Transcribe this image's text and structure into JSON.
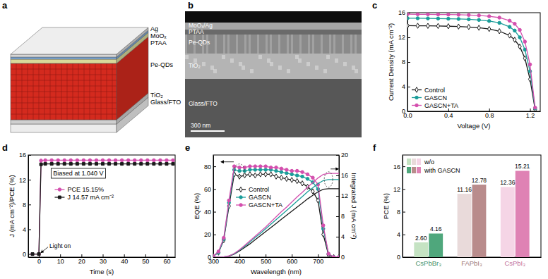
{
  "schematic": {
    "panel_label": "a",
    "layers": [
      "Ag",
      "MoOₓ",
      "PTAA",
      "Pe-QDs",
      "TiO₂",
      "Glass/FTO"
    ]
  },
  "sem_image": {
    "panel_label": "b",
    "layers": [
      "MoOₓ/Ag",
      "PTAA",
      "Pe-QDs",
      "TiO₂",
      "Glass/FTO"
    ],
    "scale_bar": "300 nm"
  },
  "chart_data": [
    {
      "type": "line",
      "panel_label": "c",
      "xlabel": "Voltage (V)",
      "ylabel": "Current Density (mA cm⁻²)",
      "x": [
        0,
        0.1,
        0.2,
        0.3,
        0.4,
        0.5,
        0.6,
        0.7,
        0.8,
        0.9,
        1.0,
        1.05,
        1.1,
        1.15,
        1.2,
        1.25
      ],
      "xlim": [
        0,
        1.3
      ],
      "xticks": [
        {
          "value": 0,
          "label": "0.0"
        },
        0.4,
        0.8,
        1.2
      ],
      "ylim": [
        0,
        16
      ],
      "yticks": [
        0,
        4,
        8,
        12,
        16
      ],
      "legend": "lower left",
      "series": [
        {
          "name": "Control",
          "color": "#1a1a1a",
          "marker": "diamond",
          "line_style": "solid",
          "values": [
            13.9,
            13.88,
            13.86,
            13.84,
            13.8,
            13.75,
            13.68,
            13.55,
            13.35,
            13.0,
            12.3,
            11.6,
            10.5,
            8.6,
            5.2,
            0.3
          ]
        },
        {
          "name": "GASCN",
          "color": "#1b9e9a",
          "marker": "circle",
          "line_style": "solid",
          "values": [
            15.1,
            15.09,
            15.07,
            15.05,
            15.02,
            14.98,
            14.92,
            14.82,
            14.65,
            14.35,
            13.7,
            13.1,
            12.0,
            10.0,
            6.5,
            0.5
          ]
        },
        {
          "name": "GASCN+TA",
          "color": "#d44fae",
          "marker": "circle",
          "line_style": "solid",
          "values": [
            15.75,
            15.74,
            15.73,
            15.71,
            15.69,
            15.66,
            15.62,
            15.55,
            15.42,
            15.2,
            14.7,
            14.2,
            13.2,
            11.3,
            7.6,
            0.6
          ]
        }
      ]
    },
    {
      "type": "line",
      "panel_label": "d",
      "xlabel": "Time (s)",
      "ylabel": "J (mA cm⁻²)/PCE (%)",
      "annotations": [
        "Biased at 1.040 V",
        "Light on"
      ],
      "x": [
        -3,
        0,
        1,
        3,
        6,
        9,
        12,
        15,
        18,
        21,
        24,
        27,
        30,
        33,
        36,
        39,
        42,
        45,
        48,
        51,
        54,
        57,
        60,
        63
      ],
      "xlim": [
        -5,
        64
      ],
      "xticks": [
        0,
        10,
        20,
        30,
        40,
        50,
        60
      ],
      "ylim": [
        -0.5,
        16
      ],
      "yticks": [
        0,
        4,
        8,
        12,
        16
      ],
      "legend": "center",
      "series": [
        {
          "name": "PCE 15.15%",
          "color": "#d44fae",
          "marker": "circle",
          "line_style": "solid",
          "values": [
            0,
            0,
            15.1,
            15.15,
            15.15,
            15.15,
            15.15,
            15.15,
            15.15,
            15.15,
            15.15,
            15.15,
            15.15,
            15.15,
            15.15,
            15.15,
            15.15,
            15.15,
            15.15,
            15.15,
            15.15,
            15.15,
            15.15,
            15.15
          ]
        },
        {
          "name": "J 14.57 mA cm⁻²",
          "color": "#1a1a1a",
          "marker": "square",
          "line_style": "solid",
          "values": [
            0,
            0,
            14.5,
            14.57,
            14.57,
            14.57,
            14.57,
            14.57,
            14.57,
            14.57,
            14.57,
            14.57,
            14.57,
            14.57,
            14.57,
            14.57,
            14.57,
            14.57,
            14.57,
            14.57,
            14.57,
            14.57,
            14.57,
            14.57
          ]
        }
      ]
    },
    {
      "type": "line",
      "panel_label": "e",
      "xlabel": "Wavelength (nm)",
      "ylabel": "EQE (%)",
      "y2label": "Integrated J (mA cm⁻²)",
      "x": [
        300,
        320,
        340,
        360,
        380,
        400,
        420,
        440,
        460,
        480,
        500,
        520,
        540,
        560,
        580,
        600,
        620,
        640,
        660,
        680,
        700,
        720,
        740,
        760,
        780
      ],
      "xlim": [
        300,
        780
      ],
      "xticks": [
        300,
        400,
        500,
        600,
        700
      ],
      "ylim": [
        0,
        90
      ],
      "yticks": [
        0,
        20,
        40,
        60,
        80
      ],
      "y2lim": [
        0,
        20
      ],
      "y2ticks": [
        0,
        4,
        8,
        12,
        16,
        20
      ],
      "legend": "center",
      "series": [
        {
          "name": "Control",
          "color": "#1a1a1a",
          "marker": "diamond",
          "line_style": "solid",
          "values": [
            1,
            4,
            15,
            45,
            73,
            71,
            72,
            73,
            72,
            73,
            73,
            73,
            71,
            70,
            69,
            68,
            67,
            65,
            62,
            58,
            50,
            20,
            2,
            0,
            0
          ]
        },
        {
          "name": "GASCN",
          "color": "#1b9e9a",
          "marker": "circle",
          "line_style": "solid",
          "values": [
            1,
            4,
            16,
            48,
            77,
            76,
            76,
            77,
            77,
            77,
            77,
            77,
            76,
            75,
            74,
            73,
            72,
            71,
            69,
            66,
            60,
            25,
            3,
            0,
            0
          ]
        },
        {
          "name": "GASCN+TA",
          "color": "#d44fae",
          "marker": "circle",
          "line_style": "solid",
          "values": [
            1,
            5,
            17,
            50,
            80,
            79,
            79,
            80,
            80,
            80,
            80,
            79,
            79,
            78,
            77,
            76,
            76,
            75,
            73,
            70,
            64,
            28,
            3,
            0,
            0
          ]
        },
        {
          "color": "#1a1a1a",
          "axis": "y2",
          "line_style": "solid",
          "values": [
            0,
            0,
            0.05,
            0.2,
            0.6,
            1.2,
            1.9,
            2.6,
            3.4,
            4.2,
            5.0,
            5.8,
            6.6,
            7.4,
            8.2,
            9.0,
            9.8,
            10.6,
            11.4,
            12.1,
            12.8,
            13.3,
            13.4,
            13.4,
            13.4
          ]
        },
        {
          "color": "#1b9e9a",
          "axis": "y2",
          "line_style": "solid",
          "values": [
            0,
            0,
            0.05,
            0.22,
            0.68,
            1.35,
            2.15,
            2.95,
            3.85,
            4.65,
            5.55,
            6.45,
            7.35,
            8.25,
            9.15,
            10.05,
            10.95,
            11.85,
            12.8,
            13.6,
            14.4,
            15.0,
            15.2,
            15.2,
            15.2
          ]
        },
        {
          "color": "#d44fae",
          "axis": "y2",
          "line_style": "solid",
          "values": [
            0,
            0,
            0.06,
            0.24,
            0.72,
            1.45,
            2.3,
            3.2,
            4.1,
            5.0,
            5.9,
            6.9,
            7.9,
            8.9,
            9.8,
            10.8,
            11.8,
            12.7,
            13.7,
            14.6,
            15.5,
            16.2,
            16.4,
            16.4,
            16.4
          ]
        }
      ]
    },
    {
      "type": "bar",
      "panel_label": "f",
      "ylabel": "PCE (%)",
      "categories": [
        "CsPbBr₃",
        "FAPbI₃",
        "CsPbI₃"
      ],
      "ylim": [
        0,
        18
      ],
      "yticks": [
        0,
        4,
        8,
        12,
        16
      ],
      "legend": "upper left",
      "data_labels": true,
      "series": [
        {
          "name": "w/o",
          "colors": [
            "#c5e3c3",
            "#e9dada",
            "#f5d5e6"
          ],
          "values": [
            2.6,
            11.16,
            12.36
          ],
          "value_labels": [
            "2.60",
            "11.16",
            "12.36"
          ]
        },
        {
          "name": "with GASCN",
          "colors": [
            "#4fa77c",
            "#b98c8c",
            "#df82b4"
          ],
          "values": [
            4.16,
            12.78,
            15.21
          ]
        }
      ]
    }
  ]
}
